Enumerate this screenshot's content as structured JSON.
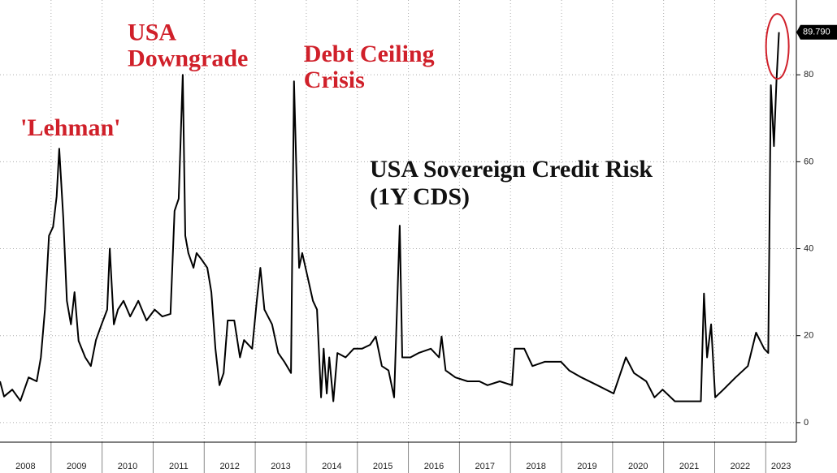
{
  "chart_data": {
    "type": "line",
    "title": [
      "USA Sovereign Credit Risk",
      "(1Y CDS)"
    ],
    "annotations": [
      {
        "lines": [
          "'Lehman'"
        ],
        "x": 2008.4,
        "y": 66
      },
      {
        "lines": [
          "USA",
          "Downgrade"
        ],
        "x": 2010.5,
        "y": 88
      },
      {
        "lines": [
          "Debt Ceiling",
          "Crisis"
        ],
        "x": 2013.95,
        "y": 83
      }
    ],
    "x": [
      2008.0,
      2008.08,
      2008.24,
      2008.4,
      2008.56,
      2008.72,
      2008.8,
      2008.88,
      2008.96,
      2009.04,
      2009.11,
      2009.16,
      2009.24,
      2009.31,
      2009.39,
      2009.46,
      2009.54,
      2009.67,
      2009.78,
      2009.88,
      2009.99,
      2010.1,
      2010.15,
      2010.23,
      2010.31,
      2010.42,
      2010.55,
      2010.71,
      2010.87,
      2011.03,
      2011.18,
      2011.34,
      2011.42,
      2011.5,
      2011.58,
      2011.63,
      2011.69,
      2011.79,
      2011.85,
      2011.95,
      2012.06,
      2012.14,
      2012.22,
      2012.3,
      2012.38,
      2012.46,
      2012.59,
      2012.7,
      2012.78,
      2012.94,
      2013.03,
      2013.1,
      2013.18,
      2013.33,
      2013.45,
      2013.57,
      2013.7,
      2013.76,
      2013.81,
      2013.86,
      2013.92,
      2014.02,
      2014.13,
      2014.21,
      2014.29,
      2014.34,
      2014.4,
      2014.45,
      2014.53,
      2014.61,
      2014.77,
      2014.93,
      2015.09,
      2015.25,
      2015.36,
      2015.48,
      2015.61,
      2015.72,
      2015.83,
      2015.88,
      2016.04,
      2016.2,
      2016.44,
      2016.6,
      2016.65,
      2016.73,
      2016.92,
      2017.16,
      2017.39,
      2017.55,
      2017.79,
      2018.03,
      2018.08,
      2018.27,
      2018.43,
      2018.67,
      2018.99,
      2019.15,
      2019.39,
      2019.7,
      2020.02,
      2020.26,
      2020.42,
      2020.66,
      2020.82,
      2020.98,
      2021.22,
      2021.46,
      2021.73,
      2021.79,
      2021.85,
      2021.93,
      2022.01,
      2022.17,
      2022.41,
      2022.65,
      2022.81,
      2022.97,
      2023.05,
      2023.1,
      2023.16,
      2023.21,
      2023.26
    ],
    "series": [
      {
        "name": "USA 1Y CDS",
        "color": "#000000",
        "values": [
          9.5,
          6,
          7.6,
          5,
          10.4,
          9.5,
          15,
          26,
          43,
          45,
          52,
          63,
          47,
          28,
          22.6,
          30,
          18.8,
          15,
          13,
          19,
          22.6,
          26,
          40,
          22.6,
          26,
          28,
          24.4,
          28,
          23.5,
          26,
          24.4,
          25,
          48.7,
          51.5,
          80,
          43,
          39,
          35.6,
          39,
          37.5,
          35.6,
          30,
          17,
          8.6,
          11.4,
          23.5,
          23.5,
          15,
          19,
          17,
          28,
          35.6,
          26,
          22.6,
          16,
          14,
          11.4,
          78.5,
          56,
          35.6,
          39,
          33.8,
          28,
          26,
          5.8,
          17,
          6.7,
          15,
          4.9,
          16,
          15,
          17,
          17,
          17.9,
          19.8,
          13,
          12,
          5.8,
          45.3,
          15,
          15,
          16,
          17,
          15,
          19.8,
          12,
          10.4,
          9.5,
          9.5,
          8.6,
          9.5,
          8.6,
          17,
          17,
          13,
          14,
          14,
          12,
          10.4,
          8.6,
          6.7,
          15,
          11.4,
          9.5,
          5.8,
          7.6,
          4.9,
          4.9,
          4.9,
          29.7,
          15,
          22.6,
          5.8,
          7.6,
          10.4,
          13,
          20.7,
          17,
          16,
          77.6,
          63.6,
          78.5,
          89.79
        ]
      }
    ],
    "current_value": {
      "value": 89.79,
      "label": "89.790"
    },
    "xlim": [
      2008,
      2023.6
    ],
    "xticks": [
      {
        "value": 2008.5,
        "label": "2008"
      },
      {
        "value": 2009.5,
        "label": "2009"
      },
      {
        "value": 2010.5,
        "label": "2010"
      },
      {
        "value": 2011.5,
        "label": "2011"
      },
      {
        "value": 2012.5,
        "label": "2012"
      },
      {
        "value": 2013.5,
        "label": "2013"
      },
      {
        "value": 2014.5,
        "label": "2014"
      },
      {
        "value": 2015.5,
        "label": "2015"
      },
      {
        "value": 2016.5,
        "label": "2016"
      },
      {
        "value": 2017.5,
        "label": "2017"
      },
      {
        "value": 2018.5,
        "label": "2018"
      },
      {
        "value": 2019.5,
        "label": "2019"
      },
      {
        "value": 2020.5,
        "label": "2020"
      },
      {
        "value": 2021.5,
        "label": "2021"
      },
      {
        "value": 2022.5,
        "label": "2022"
      },
      {
        "value": 2023.3,
        "label": "2023"
      }
    ],
    "ylim": [
      -4.5,
      97.2
    ],
    "yticks": [
      0,
      20,
      40,
      60,
      80
    ],
    "y_axis_side": "right",
    "grid": true
  }
}
